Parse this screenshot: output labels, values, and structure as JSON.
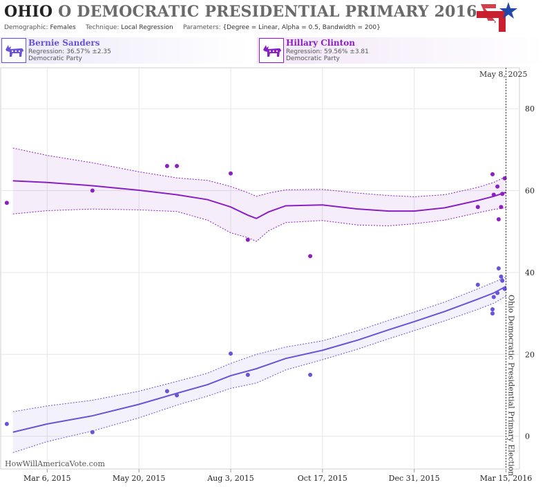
{
  "header": {
    "state": "OHIO",
    "title_rest": "O DEMOCRATIC PRESIDENTIAL PRIMARY 2016",
    "demographic_label": "Demographic:",
    "demographic": "Females",
    "technique_label": "Technique:",
    "technique": "Local Regression",
    "parameters_label": "Parameters:",
    "parameters": "{Degree = Linear, Alpha = 0.5, Bandwidth = 200}"
  },
  "candidates": [
    {
      "name": "Bernie Sanders",
      "regression": "Regression: 36.57% ±2.35",
      "party": "Democratic Party",
      "color": "#6a52d9",
      "icon": "democrat-donkey-icon"
    },
    {
      "name": "Hillary Clinton",
      "regression": "Regression: 59.56% ±3.81",
      "party": "Democratic Party",
      "color": "#8a1fc4",
      "icon": "democrat-donkey-icon"
    }
  ],
  "colors": {
    "logo_red": "#c8202f",
    "logo_blue": "#1f4aa8"
  },
  "watermark": "HowWillAmericaVote.com",
  "chart_data": {
    "type": "scatter",
    "x_axis": {
      "type": "date",
      "min": "2015-01-27",
      "max": "2016-03-26",
      "ticks": [
        "2015-03-06",
        "2015-05-20",
        "2015-08-03",
        "2015-10-17",
        "2015-12-31",
        "2016-03-15"
      ],
      "tick_labels": [
        "Mar 6, 2015",
        "May 20, 2015",
        "Aug 3, 2015",
        "Oct 17, 2015",
        "Dec 31, 2015",
        "Mar 15, 2016"
      ]
    },
    "y_axis": {
      "min": -8,
      "max": 90,
      "ticks": [
        0,
        20,
        40,
        60,
        80
      ],
      "position": "right"
    },
    "grid": true,
    "today_label": "May 8, 2025",
    "event": {
      "date": "2016-03-15",
      "label": "Ohio Democratic Presidential Primary Election"
    },
    "series": [
      {
        "name": "Hillary Clinton",
        "color": "#8a1fc4",
        "points": [
          {
            "x": "2015-02-01",
            "y": 57
          },
          {
            "x": "2015-04-12",
            "y": 60
          },
          {
            "x": "2015-06-12",
            "y": 66
          },
          {
            "x": "2015-06-20",
            "y": 66
          },
          {
            "x": "2015-08-03",
            "y": 64.2
          },
          {
            "x": "2015-08-17",
            "y": 48
          },
          {
            "x": "2015-10-07",
            "y": 44
          },
          {
            "x": "2016-02-21",
            "y": 56
          },
          {
            "x": "2016-03-04",
            "y": 64
          },
          {
            "x": "2016-03-05",
            "y": 59
          },
          {
            "x": "2016-03-08",
            "y": 61
          },
          {
            "x": "2016-03-09",
            "y": 53
          },
          {
            "x": "2016-03-11",
            "y": 56
          },
          {
            "x": "2016-03-12",
            "y": 59.2
          },
          {
            "x": "2016-03-14",
            "y": 63
          }
        ],
        "fit": [
          {
            "x": "2015-02-06",
            "y": 62.4,
            "lo": 54.3,
            "hi": 70.4
          },
          {
            "x": "2015-03-06",
            "y": 62.0,
            "lo": 55.1,
            "hi": 68.6
          },
          {
            "x": "2015-04-12",
            "y": 61.2,
            "lo": 55.5,
            "hi": 66.8
          },
          {
            "x": "2015-05-20",
            "y": 60.1,
            "lo": 55.3,
            "hi": 64.6
          },
          {
            "x": "2015-06-20",
            "y": 59.0,
            "lo": 54.9,
            "hi": 63.1
          },
          {
            "x": "2015-07-15",
            "y": 57.8,
            "lo": 52.8,
            "hi": 62.5
          },
          {
            "x": "2015-08-03",
            "y": 56.0,
            "lo": 49.7,
            "hi": 61.0
          },
          {
            "x": "2015-08-17",
            "y": 54.0,
            "lo": 48.5,
            "hi": 59.5
          },
          {
            "x": "2015-08-24",
            "y": 53.2,
            "lo": 47.6,
            "hi": 58.6
          },
          {
            "x": "2015-09-03",
            "y": 54.8,
            "lo": 50.2,
            "hi": 59.4
          },
          {
            "x": "2015-09-17",
            "y": 56.3,
            "lo": 52.2,
            "hi": 60.2
          },
          {
            "x": "2015-10-17",
            "y": 56.5,
            "lo": 52.7,
            "hi": 60.3
          },
          {
            "x": "2015-11-15",
            "y": 55.5,
            "lo": 51.6,
            "hi": 59.4
          },
          {
            "x": "2015-12-10",
            "y": 55.0,
            "lo": 51.4,
            "hi": 58.8
          },
          {
            "x": "2015-12-31",
            "y": 55.0,
            "lo": 51.9,
            "hi": 58.5
          },
          {
            "x": "2016-01-25",
            "y": 55.8,
            "lo": 52.8,
            "hi": 59.0
          },
          {
            "x": "2016-02-21",
            "y": 57.6,
            "lo": 54.6,
            "hi": 60.8
          },
          {
            "x": "2016-03-05",
            "y": 58.6,
            "lo": 55.4,
            "hi": 62.0
          },
          {
            "x": "2016-03-15",
            "y": 59.6,
            "lo": 55.8,
            "hi": 63.4
          }
        ]
      },
      {
        "name": "Bernie Sanders",
        "color": "#6a52d9",
        "points": [
          {
            "x": "2015-02-01",
            "y": 3
          },
          {
            "x": "2015-04-12",
            "y": 1
          },
          {
            "x": "2015-06-12",
            "y": 11
          },
          {
            "x": "2015-06-20",
            "y": 10
          },
          {
            "x": "2015-08-03",
            "y": 20.2
          },
          {
            "x": "2015-08-17",
            "y": 15
          },
          {
            "x": "2015-10-07",
            "y": 15
          },
          {
            "x": "2016-02-21",
            "y": 37
          },
          {
            "x": "2016-03-04",
            "y": 30
          },
          {
            "x": "2016-03-04",
            "y": 31
          },
          {
            "x": "2016-03-05",
            "y": 34
          },
          {
            "x": "2016-03-08",
            "y": 35
          },
          {
            "x": "2016-03-09",
            "y": 41
          },
          {
            "x": "2016-03-11",
            "y": 39
          },
          {
            "x": "2016-03-12",
            "y": 38
          },
          {
            "x": "2016-03-14",
            "y": 36
          }
        ],
        "fit": [
          {
            "x": "2015-02-06",
            "y": 1.0,
            "lo": -4.0,
            "hi": 6.0
          },
          {
            "x": "2015-03-06",
            "y": 3.0,
            "lo": -1.3,
            "hi": 7.4
          },
          {
            "x": "2015-04-12",
            "y": 5.0,
            "lo": 1.3,
            "hi": 8.8
          },
          {
            "x": "2015-05-20",
            "y": 7.8,
            "lo": 4.5,
            "hi": 11.0
          },
          {
            "x": "2015-06-20",
            "y": 10.5,
            "lo": 7.6,
            "hi": 13.4
          },
          {
            "x": "2015-07-15",
            "y": 12.6,
            "lo": 9.8,
            "hi": 15.4
          },
          {
            "x": "2015-08-03",
            "y": 14.8,
            "lo": 11.7,
            "hi": 17.8
          },
          {
            "x": "2015-08-24",
            "y": 16.5,
            "lo": 13.0,
            "hi": 20.0
          },
          {
            "x": "2015-09-17",
            "y": 19.0,
            "lo": 16.2,
            "hi": 21.8
          },
          {
            "x": "2015-10-17",
            "y": 21.0,
            "lo": 18.7,
            "hi": 23.3
          },
          {
            "x": "2015-11-15",
            "y": 23.5,
            "lo": 21.3,
            "hi": 25.8
          },
          {
            "x": "2015-12-10",
            "y": 26.0,
            "lo": 23.8,
            "hi": 28.3
          },
          {
            "x": "2015-12-31",
            "y": 28.0,
            "lo": 25.8,
            "hi": 30.3
          },
          {
            "x": "2016-01-25",
            "y": 30.5,
            "lo": 28.2,
            "hi": 32.8
          },
          {
            "x": "2016-02-21",
            "y": 33.5,
            "lo": 31.0,
            "hi": 36.0
          },
          {
            "x": "2016-03-05",
            "y": 35.0,
            "lo": 32.5,
            "hi": 37.6
          },
          {
            "x": "2016-03-15",
            "y": 36.6,
            "lo": 34.2,
            "hi": 38.9
          }
        ]
      }
    ]
  }
}
